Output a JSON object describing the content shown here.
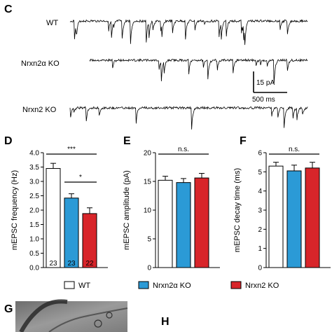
{
  "colors": {
    "wt": "#ffffff",
    "nrxn2a": "#2b9ad6",
    "nrxn2": "#d8252a",
    "stroke": "#000000"
  },
  "panel_c": {
    "letter": "C",
    "traces": [
      {
        "label": "WT"
      },
      {
        "label": "Nrxn2α KO"
      },
      {
        "label": "Nrxn2 KO"
      }
    ],
    "scale_bar": {
      "amplitude_label": "15 pA",
      "time_label": "500 ms"
    }
  },
  "legend": [
    {
      "label": "WT",
      "color": "#ffffff"
    },
    {
      "label": "Nrxn2α KO",
      "color": "#2b9ad6"
    },
    {
      "label": "Nrxn2 KO",
      "color": "#d8252a"
    }
  ],
  "panel_g": {
    "letter": "G"
  },
  "panel_h": {
    "letter": "H"
  },
  "chart_data": [
    {
      "panel": "D",
      "type": "bar",
      "categories": [
        "WT",
        "Nrxn2α KO",
        "Nrxn2 KO"
      ],
      "values": [
        3.45,
        2.42,
        1.88
      ],
      "errors": [
        0.18,
        0.15,
        0.2
      ],
      "n": [
        "23",
        "23",
        "22"
      ],
      "ylabel": "mEPSC frequency (Hz)",
      "ylim": [
        0,
        4.0
      ],
      "yticks": [
        "0.0",
        "0.5",
        "1.0",
        "1.5",
        "2.0",
        "2.5",
        "3.0",
        "3.5",
        "4.0"
      ],
      "comparisons": [
        {
          "from": 0,
          "to": 2,
          "label": "***"
        },
        {
          "from": 1,
          "to": 2,
          "label": "*"
        }
      ]
    },
    {
      "panel": "E",
      "type": "bar",
      "categories": [
        "WT",
        "Nrxn2α KO",
        "Nrxn2 KO"
      ],
      "values": [
        15.2,
        14.8,
        15.6
      ],
      "errors": [
        0.7,
        0.7,
        0.8
      ],
      "ylabel": "mEPSC amplitude (pA)",
      "ylim": [
        0,
        20
      ],
      "yticks": [
        "0",
        "5",
        "10",
        "15",
        "20"
      ],
      "comparisons": [
        {
          "from": 0,
          "to": 2,
          "label": "n.s."
        }
      ]
    },
    {
      "panel": "F",
      "type": "bar",
      "categories": [
        "WT",
        "Nrxn2α KO",
        "Nrxn2 KO"
      ],
      "values": [
        5.3,
        5.05,
        5.2
      ],
      "errors": [
        0.2,
        0.3,
        0.3
      ],
      "ylabel": "mEPSC decay time (ms)",
      "ylim": [
        0,
        6
      ],
      "yticks": [
        "0",
        "1",
        "2",
        "3",
        "4",
        "5",
        "6"
      ],
      "comparisons": [
        {
          "from": 0,
          "to": 2,
          "label": "n.s."
        }
      ]
    }
  ]
}
